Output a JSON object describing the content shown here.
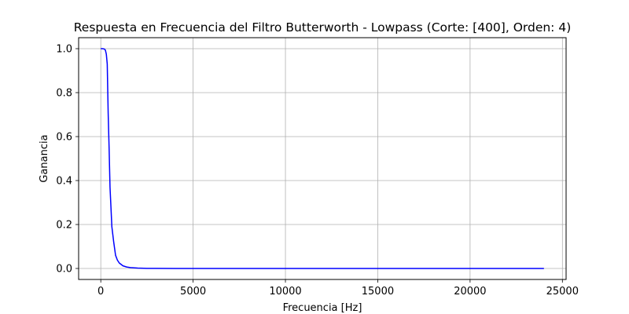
{
  "chart_data": {
    "type": "line",
    "title": "Respuesta en Frecuencia del Filtro Butterworth - Lowpass (Corte: [400], Orden: 4)",
    "xlabel": "Frecuencia [Hz]",
    "ylabel": "Ganancia",
    "xlim": [
      -1200,
      25200
    ],
    "ylim": [
      -0.05,
      1.05
    ],
    "xticks": [
      0,
      5000,
      10000,
      15000,
      20000,
      25000
    ],
    "xtick_labels": [
      "0",
      "5000",
      "10000",
      "15000",
      "20000",
      "25000"
    ],
    "yticks": [
      0.0,
      0.2,
      0.4,
      0.6,
      0.8,
      1.0
    ],
    "ytick_labels": [
      "0.0",
      "0.2",
      "0.4",
      "0.6",
      "0.8",
      "1.0"
    ],
    "grid": true,
    "line_color": "#0000ff",
    "series": [
      {
        "x": [
          0,
          100,
          200,
          250,
          300,
          350,
          400,
          450,
          500,
          550,
          600,
          700,
          800,
          900,
          1000,
          1200,
          1400,
          1600,
          2000,
          2500,
          3000,
          4000,
          5000,
          6000,
          8000,
          10000,
          12000,
          14000,
          16000,
          18000,
          20000,
          22000,
          24000
        ],
        "y": [
          1.0,
          1.0,
          0.998,
          0.993,
          0.975,
          0.93,
          0.707,
          0.55,
          0.37,
          0.28,
          0.19,
          0.12,
          0.06,
          0.038,
          0.025,
          0.012,
          0.0067,
          0.0039,
          0.0016,
          0.00066,
          0.00032,
          0.0001,
          4e-05,
          2e-05,
          6e-06,
          2.6e-06,
          1.2e-06,
          7e-07,
          4e-07,
          2e-07,
          2e-07,
          1e-07,
          0.0
        ]
      }
    ]
  }
}
